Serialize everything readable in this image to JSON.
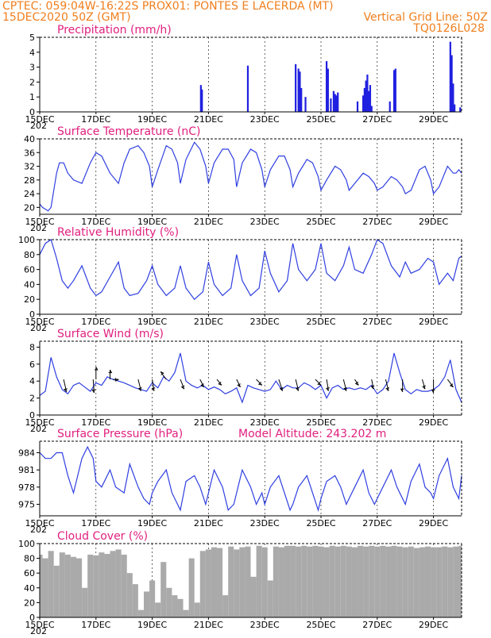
{
  "header": {
    "line1": "CPTEC:   059:04W-16:22S   PROX01: PONTES E LACERDA (MT)",
    "line2_left": "15DEC2020 50Z (GMT)",
    "line2_right": "Vertical Grid Line: 50Z",
    "line3_right": "TQ0126L028"
  },
  "colors": {
    "line": "#2f3fe0",
    "bar": "#2020e0",
    "cloud": "#aaaaaa",
    "title": "#e0207f",
    "header": "#f07f1e"
  },
  "x_ticks": [
    "15DEC",
    "17DEC",
    "19DEC",
    "21DEC",
    "23DEC",
    "25DEC",
    "27DEC",
    "29DEC"
  ],
  "x_sub": "202",
  "chart_data": [
    {
      "id": "precip",
      "type": "bar",
      "title": "Precipitation (mm/h)",
      "xlim": [
        15,
        30
      ],
      "ylim": [
        0,
        5
      ],
      "yticks": [
        0,
        1,
        2,
        3,
        4,
        5
      ],
      "x_ticks": [
        "15DEC",
        "17DEC",
        "19DEC",
        "21DEC",
        "23DEC",
        "25DEC",
        "27DEC",
        "29DEC"
      ],
      "x": [
        20.73,
        20.77,
        22.4,
        24.1,
        24.2,
        24.25,
        24.3,
        24.45,
        25.2,
        25.25,
        25.35,
        25.45,
        25.5,
        25.55,
        25.6,
        26.3,
        26.5,
        26.55,
        26.6,
        26.65,
        26.7,
        26.75,
        26.8,
        27.45,
        27.6,
        27.65,
        29.6,
        29.65,
        29.7,
        29.75,
        29.95
      ],
      "values": [
        1.8,
        1.5,
        3.1,
        3.2,
        2.9,
        2.7,
        1.6,
        1.0,
        3.4,
        2.9,
        0.9,
        1.4,
        1.2,
        1.1,
        1.3,
        0.7,
        1.1,
        1.6,
        2.1,
        2.5,
        1.4,
        1.8,
        0.4,
        0.7,
        2.8,
        2.9,
        4.7,
        3.8,
        1.9,
        0.5,
        0.3
      ]
    },
    {
      "id": "temperature",
      "type": "line",
      "title": "Surface Temperature (nC)",
      "xlim": [
        15,
        30
      ],
      "ylim": [
        18,
        40
      ],
      "yticks": [
        20,
        24,
        28,
        32,
        36,
        40
      ],
      "x_ticks": [
        "15DEC",
        "17DEC",
        "19DEC",
        "21DEC",
        "23DEC",
        "25DEC",
        "27DEC",
        "29DEC"
      ],
      "x": [
        15.0,
        15.1,
        15.2,
        15.3,
        15.4,
        15.5,
        15.6,
        15.7,
        15.85,
        16.0,
        16.2,
        16.5,
        16.8,
        17.0,
        17.2,
        17.5,
        17.8,
        18.0,
        18.2,
        18.5,
        18.7,
        18.9,
        19.0,
        19.2,
        19.5,
        19.7,
        19.9,
        20.0,
        20.2,
        20.5,
        20.7,
        20.9,
        21.0,
        21.2,
        21.5,
        21.7,
        21.9,
        22.0,
        22.2,
        22.5,
        22.7,
        22.9,
        23.0,
        23.2,
        23.5,
        23.7,
        23.9,
        24.0,
        24.2,
        24.5,
        24.7,
        24.9,
        25.0,
        25.2,
        25.5,
        25.7,
        25.9,
        26.0,
        26.2,
        26.5,
        26.7,
        26.9,
        27.0,
        27.2,
        27.5,
        27.7,
        27.9,
        28.0,
        28.2,
        28.5,
        28.7,
        28.9,
        29.0,
        29.2,
        29.5,
        29.7,
        29.8,
        29.9,
        30.0
      ],
      "values": [
        21,
        20,
        19.5,
        19,
        20,
        25,
        30,
        33,
        33,
        30,
        28,
        27,
        33,
        36,
        35,
        30,
        27,
        33,
        37,
        38,
        36,
        32,
        26,
        31,
        38,
        37,
        33,
        27,
        34,
        39,
        37,
        32,
        27,
        33,
        37,
        37,
        34,
        26,
        33,
        37,
        36,
        31,
        26,
        31,
        35,
        35,
        31,
        26,
        30,
        34,
        33,
        29,
        25,
        28,
        32,
        31,
        28,
        25,
        27,
        30,
        29,
        27,
        25,
        26,
        29,
        28,
        26,
        24,
        25,
        31,
        32,
        28,
        24,
        26,
        32,
        30,
        30,
        31,
        30
      ]
    },
    {
      "id": "humidity",
      "type": "line",
      "title": "Relative Humidity (%)",
      "xlim": [
        15,
        30
      ],
      "ylim": [
        0,
        100
      ],
      "yticks": [
        0,
        20,
        40,
        60,
        80,
        100
      ],
      "x_ticks": [
        "15DEC",
        "17DEC",
        "19DEC",
        "21DEC",
        "23DEC",
        "25DEC",
        "27DEC",
        "29DEC"
      ],
      "x": [
        15.0,
        15.2,
        15.4,
        15.6,
        15.8,
        16.0,
        16.2,
        16.5,
        16.8,
        17.0,
        17.2,
        17.5,
        17.8,
        18.0,
        18.2,
        18.5,
        18.8,
        19.0,
        19.2,
        19.5,
        19.8,
        20.0,
        20.2,
        20.5,
        20.8,
        21.0,
        21.2,
        21.5,
        21.8,
        22.0,
        22.2,
        22.5,
        22.8,
        23.0,
        23.2,
        23.5,
        23.8,
        24.0,
        24.2,
        24.5,
        24.8,
        25.0,
        25.2,
        25.5,
        25.8,
        26.0,
        26.2,
        26.5,
        26.8,
        27.0,
        27.2,
        27.5,
        27.8,
        28.0,
        28.2,
        28.5,
        28.8,
        29.0,
        29.2,
        29.5,
        29.7,
        29.9,
        30.0
      ],
      "values": [
        80,
        95,
        100,
        75,
        45,
        35,
        45,
        65,
        35,
        25,
        30,
        50,
        70,
        35,
        25,
        28,
        45,
        65,
        40,
        25,
        35,
        65,
        35,
        20,
        30,
        70,
        40,
        25,
        35,
        80,
        45,
        25,
        35,
        85,
        55,
        30,
        45,
        95,
        60,
        45,
        60,
        95,
        55,
        45,
        65,
        90,
        60,
        55,
        80,
        100,
        95,
        65,
        50,
        70,
        55,
        60,
        75,
        70,
        40,
        55,
        45,
        75,
        78
      ]
    },
    {
      "id": "wind",
      "type": "line",
      "title": "Surface Wind (m/s)",
      "xlim": [
        15,
        30
      ],
      "ylim": [
        0,
        8.7
      ],
      "yticks": [
        0,
        2,
        4,
        6,
        8
      ],
      "x_ticks": [
        "15DEC",
        "17DEC",
        "19DEC",
        "21DEC",
        "23DEC",
        "25DEC",
        "27DEC",
        "29DEC"
      ],
      "x": [
        15.0,
        15.2,
        15.4,
        15.6,
        15.8,
        16.0,
        16.2,
        16.4,
        16.6,
        16.8,
        17.0,
        17.2,
        17.4,
        17.6,
        17.8,
        18.0,
        18.2,
        18.4,
        18.6,
        18.8,
        19.0,
        19.2,
        19.4,
        19.6,
        19.8,
        20.0,
        20.2,
        20.4,
        20.6,
        20.8,
        21.0,
        21.2,
        21.4,
        21.6,
        21.8,
        22.0,
        22.2,
        22.4,
        22.6,
        22.8,
        23.0,
        23.2,
        23.4,
        23.6,
        23.8,
        24.0,
        24.2,
        24.4,
        24.6,
        24.8,
        25.0,
        25.2,
        25.4,
        25.6,
        25.8,
        26.0,
        26.2,
        26.4,
        26.6,
        26.8,
        27.0,
        27.2,
        27.4,
        27.6,
        27.8,
        28.0,
        28.2,
        28.4,
        28.6,
        28.8,
        29.0,
        29.2,
        29.4,
        29.6,
        29.8,
        30.0
      ],
      "values": [
        2.3,
        2.8,
        6.8,
        4.5,
        3.0,
        2.5,
        3.5,
        3.8,
        3.3,
        2.8,
        3.8,
        3.5,
        4.5,
        4.2,
        4.0,
        3.8,
        3.5,
        3.2,
        3.0,
        2.8,
        3.8,
        3.2,
        4.5,
        4.0,
        5.0,
        7.3,
        4.0,
        3.5,
        3.2,
        3.5,
        3.0,
        3.3,
        3.0,
        2.5,
        2.8,
        3.2,
        1.5,
        3.5,
        3.2,
        3.0,
        2.8,
        3.0,
        4.0,
        3.0,
        3.5,
        3.2,
        3.2,
        3.8,
        3.5,
        3.0,
        3.5,
        2.0,
        3.2,
        3.5,
        3.0,
        3.2,
        3.0,
        3.2,
        3.0,
        3.5,
        2.5,
        3.0,
        4.0,
        7.3,
        5.0,
        3.0,
        2.5,
        3.0,
        2.8,
        2.8,
        3.0,
        3.5,
        4.5,
        6.5,
        3.0,
        1.5
      ],
      "arrows": [
        {
          "x": 15.85,
          "dx": 0.3,
          "dy": -1.3
        },
        {
          "x": 16.9,
          "dx": 0.1,
          "dy": -1.4
        },
        {
          "x": 17.0,
          "dx": 0.0,
          "dy": 1.3
        },
        {
          "x": 17.5,
          "dx": 0.0,
          "dy": 1.0
        },
        {
          "x": 17.6,
          "dx": 0.6,
          "dy": 0.0
        },
        {
          "x": 18.5,
          "dx": 0.3,
          "dy": -1.2
        },
        {
          "x": 19.0,
          "dx": 0.2,
          "dy": -1.2
        },
        {
          "x": 19.5,
          "dx": -0.6,
          "dy": 0.8
        },
        {
          "x": 20.0,
          "dx": 0.4,
          "dy": -1.0
        },
        {
          "x": 20.7,
          "dx": 0.4,
          "dy": -0.8
        },
        {
          "x": 21.3,
          "dx": 0.5,
          "dy": -0.6
        },
        {
          "x": 22.0,
          "dx": 0.4,
          "dy": -0.8
        },
        {
          "x": 22.7,
          "dx": 0.6,
          "dy": -0.6
        },
        {
          "x": 23.5,
          "dx": 0.4,
          "dy": -1.2
        },
        {
          "x": 24.1,
          "dx": 0.3,
          "dy": -1.2
        },
        {
          "x": 24.8,
          "dx": 0.6,
          "dy": -0.6
        },
        {
          "x": 25.2,
          "dx": 0.2,
          "dy": -1.2
        },
        {
          "x": 25.8,
          "dx": 0.3,
          "dy": -1.2
        },
        {
          "x": 26.2,
          "dx": 0.4,
          "dy": -0.6
        },
        {
          "x": 26.8,
          "dx": 0.2,
          "dy": -1.0
        },
        {
          "x": 27.3,
          "dx": 0.3,
          "dy": -1.2
        },
        {
          "x": 27.9,
          "dx": 0.0,
          "dy": -1.3
        },
        {
          "x": 28.6,
          "dx": 0.3,
          "dy": -1.0
        },
        {
          "x": 29.0,
          "dx": 0.0,
          "dy": -1.4
        },
        {
          "x": 29.5,
          "dx": 0.6,
          "dy": -0.8
        }
      ]
    },
    {
      "id": "pressure",
      "type": "line",
      "title": "Surface Pressure (hPa)",
      "annotation": "Model Altitude: 243.202 m",
      "xlim": [
        15,
        30
      ],
      "ylim": [
        973,
        986
      ],
      "yticks": [
        975,
        978,
        981,
        984
      ],
      "x_ticks": [
        "15DEC",
        "17DEC",
        "19DEC",
        "21DEC",
        "23DEC",
        "25DEC",
        "27DEC",
        "29DEC"
      ],
      "x": [
        15.0,
        15.2,
        15.4,
        15.6,
        15.8,
        16.0,
        16.2,
        16.5,
        16.7,
        16.9,
        17.0,
        17.2,
        17.5,
        17.7,
        18.0,
        18.2,
        18.5,
        18.7,
        18.9,
        19.0,
        19.2,
        19.5,
        19.7,
        19.9,
        20.0,
        20.2,
        20.5,
        20.7,
        20.9,
        21.0,
        21.2,
        21.5,
        21.7,
        21.9,
        22.0,
        22.2,
        22.5,
        22.7,
        22.9,
        23.0,
        23.2,
        23.5,
        23.7,
        23.9,
        24.0,
        24.2,
        24.5,
        24.7,
        24.9,
        25.0,
        25.2,
        25.5,
        25.7,
        25.9,
        26.0,
        26.2,
        26.5,
        26.7,
        26.9,
        27.0,
        27.2,
        27.5,
        27.7,
        27.9,
        28.0,
        28.2,
        28.5,
        28.7,
        28.9,
        29.0,
        29.2,
        29.5,
        29.7,
        29.9,
        30.0
      ],
      "values": [
        984,
        983,
        983,
        984,
        984,
        980,
        977,
        983,
        985,
        983,
        979,
        978,
        981,
        978,
        977,
        982,
        978,
        976,
        975,
        977,
        979,
        981,
        977,
        975,
        974,
        979,
        980,
        978,
        975,
        977,
        981,
        978,
        974,
        975,
        977,
        981,
        978,
        975,
        977,
        975,
        978,
        980,
        977,
        974,
        975,
        978,
        980,
        977,
        974,
        976,
        979,
        980,
        978,
        975,
        976,
        978,
        981,
        977,
        975,
        976,
        978,
        981,
        978,
        976,
        975,
        979,
        982,
        978,
        977,
        976,
        980,
        983,
        978,
        976,
        980
      ]
    },
    {
      "id": "cloud",
      "type": "bar",
      "title": "Cloud Cover (%)",
      "xlim": [
        15,
        30
      ],
      "ylim": [
        0,
        100
      ],
      "yticks": [
        0,
        20,
        40,
        60,
        80,
        100
      ],
      "x_ticks": [
        "15DEC",
        "17DEC",
        "19DEC",
        "21DEC",
        "23DEC",
        "25DEC",
        "27DEC",
        "29DEC"
      ],
      "x": [
        15.0,
        15.2,
        15.4,
        15.6,
        15.8,
        16.0,
        16.2,
        16.4,
        16.6,
        16.8,
        17.0,
        17.2,
        17.4,
        17.6,
        17.8,
        18.0,
        18.2,
        18.4,
        18.6,
        18.8,
        19.0,
        19.2,
        19.4,
        19.6,
        19.8,
        20.0,
        20.2,
        20.4,
        20.6,
        20.8,
        21.0,
        21.2,
        21.4,
        21.6,
        21.8,
        22.0,
        22.2,
        22.4,
        22.6,
        22.8,
        23.0,
        23.2,
        23.4,
        23.6,
        23.8,
        24.0,
        24.2,
        24.4,
        24.6,
        24.8,
        25.0,
        25.2,
        25.4,
        25.6,
        25.8,
        26.0,
        26.2,
        26.4,
        26.6,
        26.8,
        27.0,
        27.2,
        27.4,
        27.6,
        27.8,
        28.0,
        28.2,
        28.4,
        28.6,
        28.8,
        29.0,
        29.2,
        29.4,
        29.6,
        29.8,
        30.0
      ],
      "values": [
        85,
        80,
        90,
        70,
        88,
        85,
        82,
        80,
        40,
        85,
        84,
        88,
        86,
        90,
        92,
        85,
        60,
        45,
        10,
        35,
        50,
        20,
        75,
        40,
        30,
        25,
        10,
        80,
        20,
        90,
        92,
        95,
        94,
        30,
        96,
        92,
        95,
        96,
        55,
        97,
        95,
        50,
        96,
        95,
        97,
        97,
        96,
        97,
        96,
        97,
        96,
        95,
        97,
        96,
        97,
        96,
        95,
        97,
        96,
        97,
        96,
        97,
        96,
        97,
        96,
        95,
        96,
        94,
        95,
        96,
        95,
        95,
        96,
        95,
        96,
        97
      ]
    }
  ]
}
